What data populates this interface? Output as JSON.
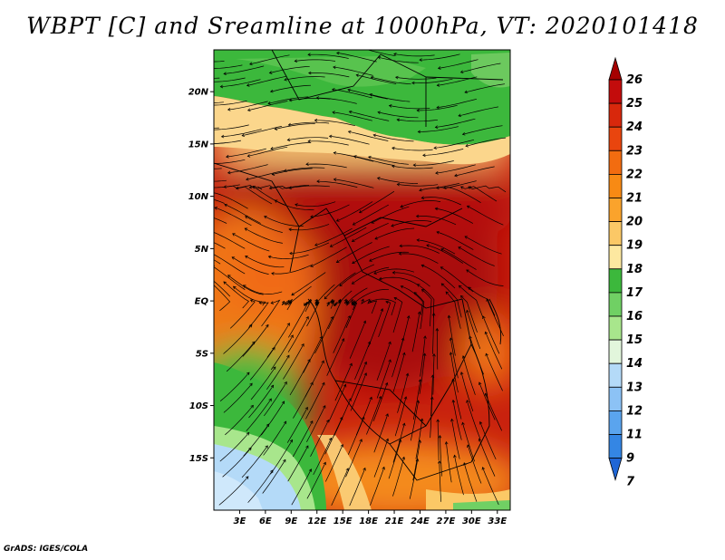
{
  "title": "WBPT [C] and Sreamline at 1000hPa, VT: 2020101418",
  "credit": "GrADS: IGES/COLA",
  "map": {
    "lat_labels": [
      "20N",
      "15N",
      "10N",
      "5N",
      "EQ",
      "5S",
      "10S",
      "15S"
    ],
    "lat_values": [
      20,
      15,
      10,
      5,
      0,
      -5,
      -10,
      -15
    ],
    "lon_labels": [
      "3E",
      "6E",
      "9E",
      "12E",
      "15E",
      "18E",
      "21E",
      "24E",
      "27E",
      "30E",
      "33E"
    ],
    "lon_values": [
      3,
      6,
      9,
      12,
      15,
      18,
      21,
      24,
      27,
      30,
      33
    ],
    "lon_range": [
      0,
      34.5
    ],
    "lat_range": [
      -20,
      24
    ]
  },
  "colorbar": {
    "levels": [
      "26",
      "25",
      "24",
      "23",
      "22",
      "21",
      "20",
      "19",
      "18",
      "17",
      "16",
      "15",
      "14",
      "13",
      "12",
      "11",
      "9",
      "7"
    ],
    "colors": [
      "#a50000",
      "#c30c0c",
      "#d8280c",
      "#e9450e",
      "#f26c10",
      "#f88a14",
      "#faa32c",
      "#fbc866",
      "#fde8a0",
      "#3cb83c",
      "#70d064",
      "#a8e68c",
      "#e2f6dc",
      "#b4daf8",
      "#8cc2f5",
      "#5aa4ee",
      "#3486e4",
      "#1f66d6"
    ]
  }
}
